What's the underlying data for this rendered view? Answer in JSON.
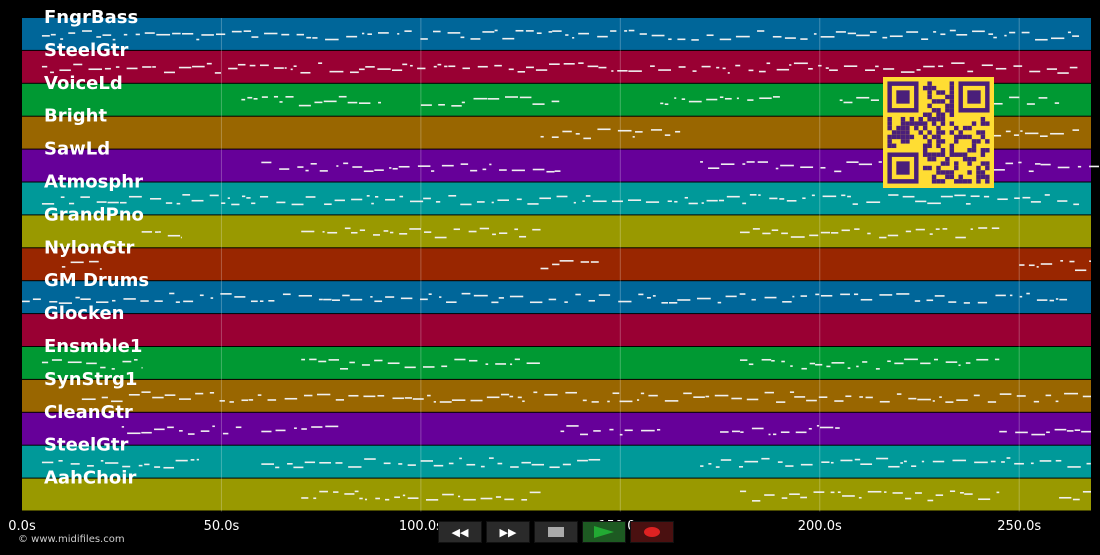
{
  "tracks": [
    {
      "name": "FngrBass",
      "color": "#006699"
    },
    {
      "name": "SteelGtr",
      "color": "#990033"
    },
    {
      "name": "VoiceLd",
      "color": "#009933"
    },
    {
      "name": "Bright",
      "color": "#996600"
    },
    {
      "name": "SawLd",
      "color": "#660099"
    },
    {
      "name": "Atmosphr",
      "color": "#009999"
    },
    {
      "name": "GrandPno",
      "color": "#999900"
    },
    {
      "name": "NylonGtr",
      "color": "#992600"
    },
    {
      "name": "GM Drums",
      "color": "#006699"
    },
    {
      "name": "Glocken",
      "color": "#990033"
    },
    {
      "name": "Ensmble1",
      "color": "#009933"
    },
    {
      "name": "SynStrg1",
      "color": "#996600"
    },
    {
      "name": "CleanGtr",
      "color": "#660099"
    },
    {
      "name": "SteelGtr",
      "color": "#009999"
    },
    {
      "name": "AahChoir",
      "color": "#999900"
    }
  ],
  "timeline": {
    "ticks": [
      "0.0s",
      "50.0s",
      "100.0s",
      "150.0s",
      "200.0s",
      "250.0s"
    ],
    "tick_values": [
      0,
      50,
      100,
      150,
      200,
      250
    ],
    "range": [
      0,
      268
    ]
  },
  "copyright": "© www.midifiles.com",
  "transport": {
    "rewind": "◀◀",
    "forward": "▶▶",
    "stop": "stop-icon",
    "play": "play-icon",
    "record": "record-icon",
    "play_color": "#22aa33",
    "record_color": "#dd2222"
  },
  "qr_color": "#ffdd33"
}
